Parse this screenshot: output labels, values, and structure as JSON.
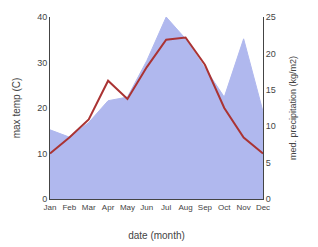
{
  "chart_data": {
    "type": "line",
    "xlabel": "date (month)",
    "ylabel": "max temp (C)",
    "y2label": "med. precipitation (kg/m2)",
    "categories": [
      "Jan",
      "Feb",
      "Mar",
      "Apr",
      "May",
      "Jun",
      "Jul",
      "Aug",
      "Sep",
      "Oct",
      "Nov",
      "Dec"
    ],
    "series": [
      {
        "type": "area",
        "axis": "y2",
        "color": "#b0b8ee",
        "values": [
          9.5,
          8.5,
          10.5,
          13.5,
          14.0,
          19.0,
          25.0,
          22.0,
          18.0,
          14.0,
          22.0,
          12.0
        ]
      },
      {
        "type": "line",
        "color": "#aa3333",
        "values": [
          10.0,
          13.5,
          17.5,
          26.0,
          22.0,
          29.0,
          35.0,
          35.5,
          29.5,
          20.0,
          13.5,
          10.0
        ]
      }
    ],
    "ylim": [
      0,
      40
    ],
    "yticks": [
      0,
      10,
      20,
      30,
      40
    ],
    "y2lim": [
      0,
      25
    ],
    "y2ticks": [
      0,
      5,
      10,
      15,
      20,
      25
    ],
    "grid": false
  }
}
